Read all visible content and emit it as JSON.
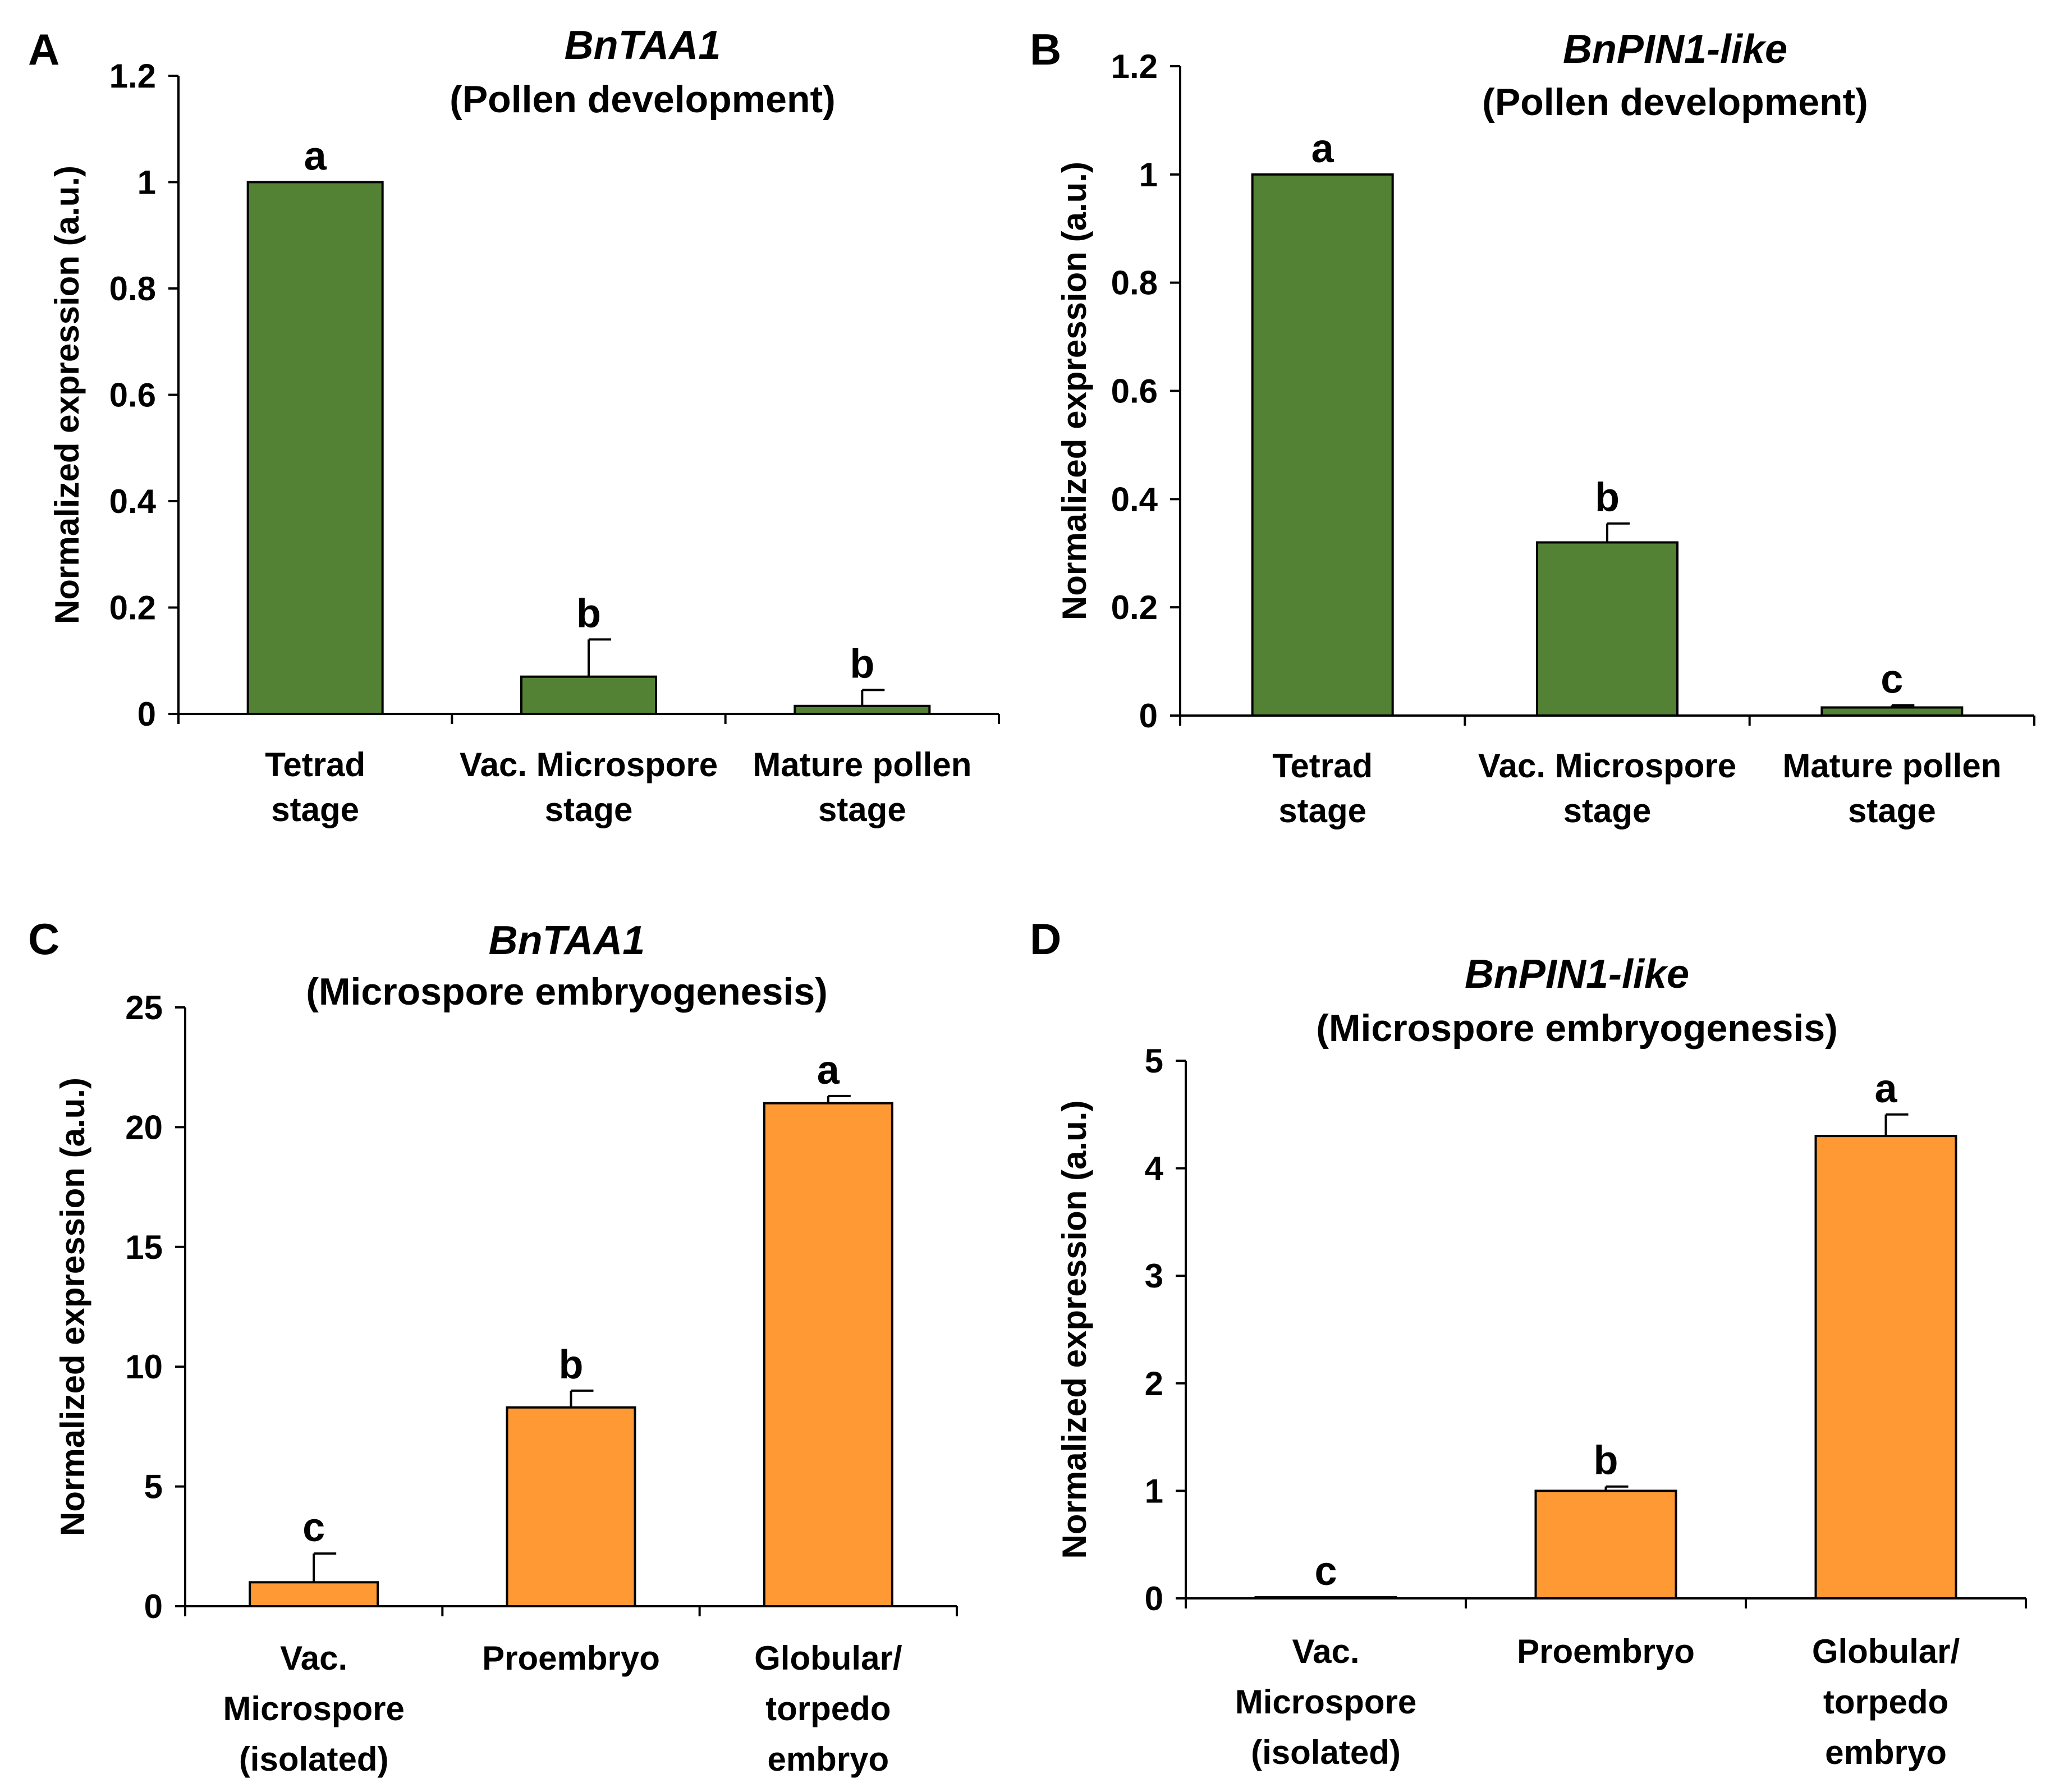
{
  "figure_title": "",
  "colors": {
    "green": "#548235",
    "orange": "#ff9933",
    "axis": "#000000"
  },
  "chart_data": [
    {
      "panel": "A",
      "type": "bar",
      "title": "BnTAA1",
      "subtitle": "(Pollen development)",
      "ylabel": "Normalized expression (a.u.)",
      "xlabel": "",
      "ylim": [
        0,
        1.2
      ],
      "yticks": [
        "0",
        "0.2",
        "0.4",
        "0.6",
        "0.8",
        "1",
        "1.2"
      ],
      "yticks_values": [
        0,
        0.2,
        0.4,
        0.6,
        0.8,
        1,
        1.2
      ],
      "color": "#548235",
      "categories": [
        [
          "Tetrad",
          "stage"
        ],
        [
          "Vac. Microspore",
          "stage"
        ],
        [
          "Mature pollen",
          "stage"
        ]
      ],
      "values": [
        1.0,
        0.07,
        0.015
      ],
      "errors": [
        0,
        0.07,
        0.03
      ],
      "letters": [
        "a",
        "b",
        "b"
      ]
    },
    {
      "panel": "B",
      "type": "bar",
      "title": "BnPIN1-like",
      "subtitle": "(Pollen development)",
      "ylabel": "Normalized expression (a.u.)",
      "xlabel": "",
      "ylim": [
        0,
        1.2
      ],
      "yticks": [
        "0",
        "0.2",
        "0.4",
        "0.6",
        "0.8",
        "1",
        "1.2"
      ],
      "yticks_values": [
        0,
        0.2,
        0.4,
        0.6,
        0.8,
        1,
        1.2
      ],
      "color": "#548235",
      "categories": [
        [
          "Tetrad",
          "stage"
        ],
        [
          "Vac. Microspore",
          "stage"
        ],
        [
          "Mature pollen",
          "stage"
        ]
      ],
      "values": [
        1.0,
        0.32,
        0.015
      ],
      "errors": [
        0,
        0.035,
        0.004
      ],
      "letters": [
        "a",
        "b",
        "c"
      ]
    },
    {
      "panel": "C",
      "type": "bar",
      "title": "BnTAA1",
      "subtitle": "(Microspore embryogenesis)",
      "ylabel": "Normalized expression (a.u.)",
      "xlabel": "",
      "ylim": [
        0,
        25
      ],
      "yticks": [
        "0",
        "5",
        "10",
        "15",
        "20",
        "25"
      ],
      "yticks_values": [
        0,
        5,
        10,
        15,
        20,
        25
      ],
      "color": "#ff9933",
      "categories": [
        [
          "Vac.",
          "Microspore",
          "(isolated)"
        ],
        [
          "Proembryo"
        ],
        [
          "Globular/",
          "torpedo",
          "embryo"
        ]
      ],
      "values": [
        1.0,
        8.3,
        21.0
      ],
      "errors": [
        1.2,
        0.7,
        0.3
      ],
      "letters": [
        "c",
        "b",
        "a"
      ]
    },
    {
      "panel": "D",
      "type": "bar",
      "title": "BnPIN1-like",
      "subtitle": "(Microspore embryogenesis)",
      "ylabel": "Normalized expression (a.u.)",
      "xlabel": "",
      "ylim": [
        0,
        5
      ],
      "yticks": [
        "0",
        "1",
        "2",
        "3",
        "4",
        "5"
      ],
      "yticks_values": [
        0,
        1,
        2,
        3,
        4,
        5
      ],
      "color": "#ff9933",
      "categories": [
        [
          "Vac.",
          "Microspore",
          "(isolated)"
        ],
        [
          "Proembryo"
        ],
        [
          "Globular/",
          "torpedo",
          "embryo"
        ]
      ],
      "values": [
        0.01,
        1.0,
        4.3
      ],
      "errors": [
        0,
        0.04,
        0.2
      ],
      "letters": [
        "c",
        "b",
        "a"
      ]
    }
  ]
}
